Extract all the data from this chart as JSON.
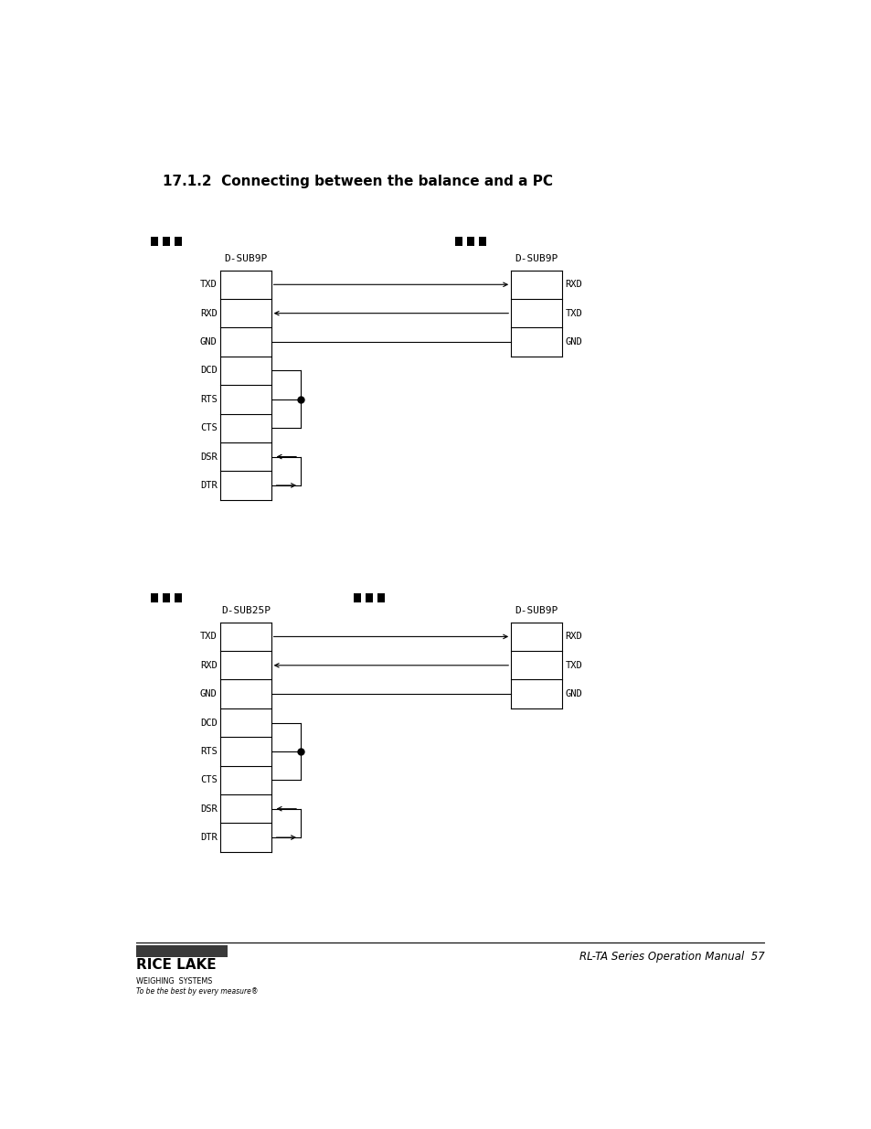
{
  "title": "17.1.2  Connecting between the balance and a PC",
  "title_fontsize": 11,
  "bg_color": "#ffffff",
  "footer_line_text": "RL-TA Series Operation Manual  57",
  "d1_left_label": "D-SUB9P",
  "d1_right_label": "D-SUB9P",
  "d1_left_pins": [
    "TXD",
    "RXD",
    "GND",
    "DCD",
    "RTS",
    "CTS",
    "DSR",
    "DTR"
  ],
  "d1_right_pins": [
    "RXD",
    "TXD",
    "GND"
  ],
  "d2_left_label": "D-SUB25P",
  "d2_right_label": "D-SUB9P",
  "d2_left_pins": [
    "TXD",
    "RXD",
    "GND",
    "DCD",
    "RTS",
    "CTS",
    "DSR",
    "DTR"
  ],
  "d2_right_pins": [
    "RXD",
    "TXD",
    "GND"
  ]
}
